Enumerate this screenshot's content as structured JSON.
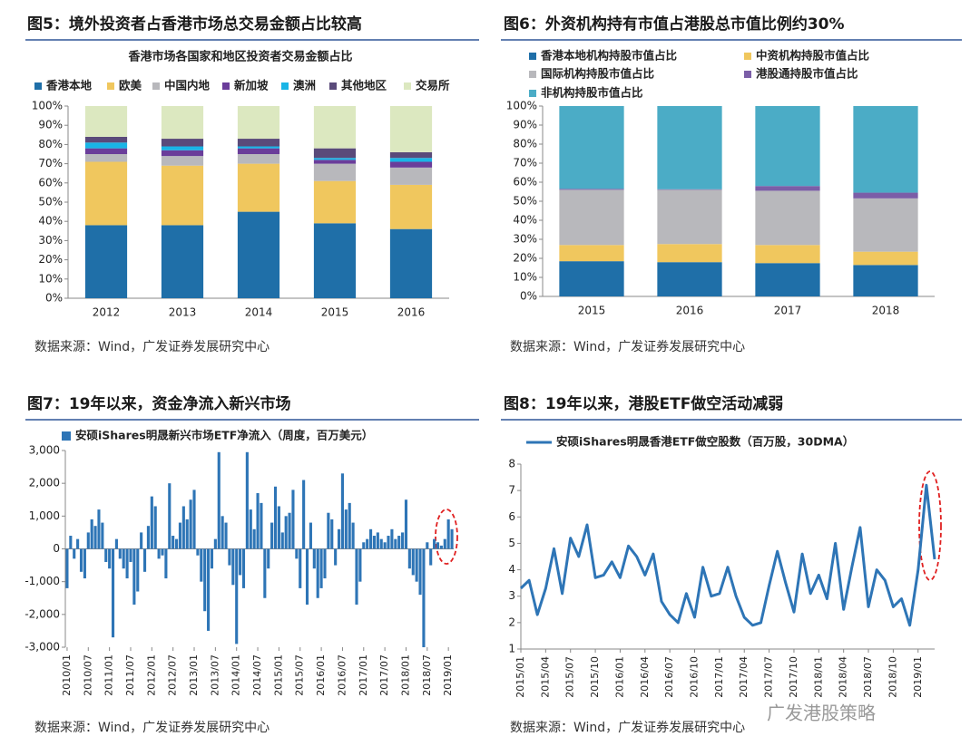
{
  "watermark": "广发港股策略",
  "chart_data": [
    {
      "type": "bar",
      "stacked": true,
      "title": "图5：境外投资者占香港市场总交易金额占比较高",
      "subtitle": "香港市场各国家和地区投资者交易金额占比",
      "source": "数据来源：Wind，广发证券发展研究中心",
      "categories": [
        "2012",
        "2013",
        "2014",
        "2015",
        "2016"
      ],
      "series": [
        {
          "name": "香港本地",
          "color": "#1f6fa8",
          "values": [
            38,
            38,
            45,
            39,
            36
          ]
        },
        {
          "name": "欧美",
          "color": "#f0c75e",
          "values": [
            33,
            31,
            25,
            22,
            23
          ]
        },
        {
          "name": "中国内地",
          "color": "#b8b8bc",
          "values": [
            4,
            5,
            5,
            9,
            9
          ]
        },
        {
          "name": "新加坡",
          "color": "#6a3d9a",
          "values": [
            3,
            3,
            3,
            2,
            3
          ]
        },
        {
          "name": "澳洲",
          "color": "#19b5e6",
          "values": [
            3,
            2,
            1,
            1,
            2
          ]
        },
        {
          "name": "其他地区",
          "color": "#5a4a7a",
          "values": [
            3,
            4,
            4,
            5,
            3
          ]
        },
        {
          "name": "交易所",
          "color": "#dce8c0",
          "values": [
            16,
            17,
            17,
            22,
            24
          ]
        }
      ],
      "ylim": [
        0,
        100
      ],
      "yticks": [
        {
          "value": 0,
          "label": "0%"
        },
        {
          "value": 10,
          "label": "10%"
        },
        {
          "value": 20,
          "label": "20%"
        },
        {
          "value": 30,
          "label": "30%"
        },
        {
          "value": 40,
          "label": "40%"
        },
        {
          "value": 50,
          "label": "50%"
        },
        {
          "value": 60,
          "label": "60%"
        },
        {
          "value": 70,
          "label": "70%"
        },
        {
          "value": 80,
          "label": "80%"
        },
        {
          "value": 90,
          "label": "90%"
        },
        {
          "value": 100,
          "label": "100%"
        }
      ],
      "grid": false
    },
    {
      "type": "bar",
      "stacked": true,
      "title": "图6：外资机构持有市值占港股总市值比例约30%",
      "source": "数据来源：Wind，广发证券发展研究中心",
      "categories": [
        "2015",
        "2016",
        "2017",
        "2018"
      ],
      "series": [
        {
          "name": "香港本地机构持股市值占比",
          "color": "#1f6fa8",
          "values": [
            18.5,
            18,
            17.5,
            16.5
          ]
        },
        {
          "name": "中资机构持股市值占比",
          "color": "#f0c75e",
          "values": [
            8.5,
            9.5,
            9.5,
            7
          ]
        },
        {
          "name": "国际机构持股市值占比",
          "color": "#b8b8bc",
          "values": [
            29,
            28.5,
            28.5,
            28
          ]
        },
        {
          "name": "港股通持股市值占比",
          "color": "#7b5ea7",
          "values": [
            0.5,
            0.3,
            2.5,
            3
          ]
        },
        {
          "name": "非机构持股市值占比",
          "color": "#4bacc6",
          "values": [
            43.5,
            43.7,
            42,
            45.5
          ]
        }
      ],
      "ylim": [
        0,
        100
      ],
      "yticks": [
        {
          "value": 0,
          "label": "0%"
        },
        {
          "value": 10,
          "label": "10%"
        },
        {
          "value": 20,
          "label": "20%"
        },
        {
          "value": 30,
          "label": "30%"
        },
        {
          "value": 40,
          "label": "40%"
        },
        {
          "value": 50,
          "label": "50%"
        },
        {
          "value": 60,
          "label": "60%"
        },
        {
          "value": 70,
          "label": "70%"
        },
        {
          "value": 80,
          "label": "80%"
        },
        {
          "value": 90,
          "label": "90%"
        },
        {
          "value": 100,
          "label": "100%"
        }
      ],
      "grid": false
    },
    {
      "type": "bar",
      "title": "图7：19年以来，资金净流入新兴市场",
      "source": "数据来源：Wind，广发证券发展研究中心",
      "categories": [
        "2010/01",
        null,
        null,
        null,
        null,
        null,
        "2010/07",
        null,
        null,
        null,
        null,
        null,
        "2011/01",
        null,
        null,
        null,
        null,
        null,
        "2011/07",
        null,
        null,
        null,
        null,
        null,
        "2012/01",
        null,
        null,
        null,
        null,
        null,
        "2012/07",
        null,
        null,
        null,
        null,
        null,
        "2013/01",
        null,
        null,
        null,
        null,
        null,
        "2013/07",
        null,
        null,
        null,
        null,
        null,
        "2014/01",
        null,
        null,
        null,
        null,
        null,
        "2014/07",
        null,
        null,
        null,
        null,
        null,
        "2015/01",
        null,
        null,
        null,
        null,
        null,
        "2015/07",
        null,
        null,
        null,
        null,
        null,
        "2016/01",
        null,
        null,
        null,
        null,
        null,
        "2016/07",
        null,
        null,
        null,
        null,
        null,
        "2017/01",
        null,
        null,
        null,
        null,
        null,
        "2017/07",
        null,
        null,
        null,
        null,
        null,
        "2018/01",
        null,
        null,
        null,
        null,
        null,
        "2018/07",
        null,
        null,
        null,
        null,
        null,
        "2019/01",
        null
      ],
      "series": [
        {
          "name": "安硕iShares明晟新兴市场ETF净流入（周度，百万美元）",
          "color": "#2e75b6",
          "values": [
            -1200,
            400,
            -300,
            300,
            -700,
            -900,
            500,
            900,
            700,
            1200,
            800,
            -400,
            -600,
            -2700,
            300,
            -300,
            -600,
            -900,
            -400,
            -1700,
            -1300,
            500,
            -700,
            700,
            1600,
            1300,
            -300,
            -200,
            -900,
            2000,
            400,
            300,
            800,
            1300,
            900,
            1500,
            1800,
            -200,
            -1000,
            -1900,
            -2500,
            -600,
            300,
            2950,
            1000,
            800,
            -500,
            -1100,
            -2900,
            -800,
            -1200,
            2950,
            1200,
            600,
            1700,
            1400,
            -1500,
            -600,
            800,
            1900,
            1300,
            500,
            1000,
            1100,
            1800,
            -300,
            -1200,
            2100,
            -1700,
            800,
            -600,
            -1500,
            -1200,
            -900,
            1100,
            900,
            -500,
            600,
            2300,
            1200,
            1400,
            800,
            -1700,
            -1000,
            200,
            300,
            600,
            400,
            500,
            300,
            200,
            400,
            600,
            300,
            400,
            500,
            1500,
            -600,
            -800,
            -1000,
            -1400,
            -3000,
            200,
            -500,
            300,
            200,
            100,
            300,
            900,
            600
          ]
        }
      ],
      "ylim": [
        -3000,
        3000
      ],
      "yticks": [
        {
          "value": -3000,
          "label": "-3,000"
        },
        {
          "value": -2000,
          "label": "-2,000"
        },
        {
          "value": -1000,
          "label": "-1,000"
        },
        0,
        {
          "value": 1000,
          "label": "1,000"
        },
        {
          "value": 2000,
          "label": "2,000"
        },
        {
          "value": 3000,
          "label": "3,000"
        }
      ],
      "grid": false
    },
    {
      "type": "line",
      "title": "图8：19年以来，港股ETF做空活动减弱",
      "source": "数据来源：Wind，广发证券发展研究中心",
      "categories": [
        "2015/01",
        null,
        null,
        "2015/04",
        null,
        null,
        "2015/07",
        null,
        null,
        "2015/10",
        null,
        null,
        "2016/01",
        null,
        null,
        "2016/04",
        null,
        null,
        "2016/07",
        null,
        null,
        "2016/10",
        null,
        null,
        "2017/01",
        null,
        null,
        "2017/04",
        null,
        null,
        "2017/07",
        null,
        null,
        "2017/10",
        null,
        null,
        "2018/01",
        null,
        null,
        "2018/04",
        null,
        null,
        "2018/07",
        null,
        null,
        "2018/10",
        null,
        null,
        "2019/01",
        null,
        null
      ],
      "series": [
        {
          "name": "安硕iShares明晟香港ETF做空股数（百万股，30DMA）",
          "color": "#2e75b6",
          "values": [
            3.3,
            3.6,
            2.3,
            3.3,
            4.8,
            3.1,
            5.2,
            4.5,
            5.7,
            3.7,
            3.8,
            4.3,
            3.7,
            4.9,
            4.5,
            3.8,
            4.6,
            2.8,
            2.3,
            2.0,
            3.1,
            2.2,
            4.1,
            3.0,
            3.1,
            4.1,
            3.0,
            2.2,
            1.9,
            2.0,
            3.4,
            4.7,
            3.5,
            2.4,
            4.6,
            3.1,
            3.8,
            2.9,
            5.0,
            2.5,
            4.1,
            5.6,
            2.6,
            4.0,
            3.6,
            2.6,
            2.9,
            1.9,
            4.0,
            7.2,
            4.4
          ]
        }
      ],
      "ylim": [
        1,
        8
      ],
      "yticks": [
        1,
        2,
        3,
        4,
        5,
        6,
        7,
        8
      ],
      "grid": false
    }
  ]
}
